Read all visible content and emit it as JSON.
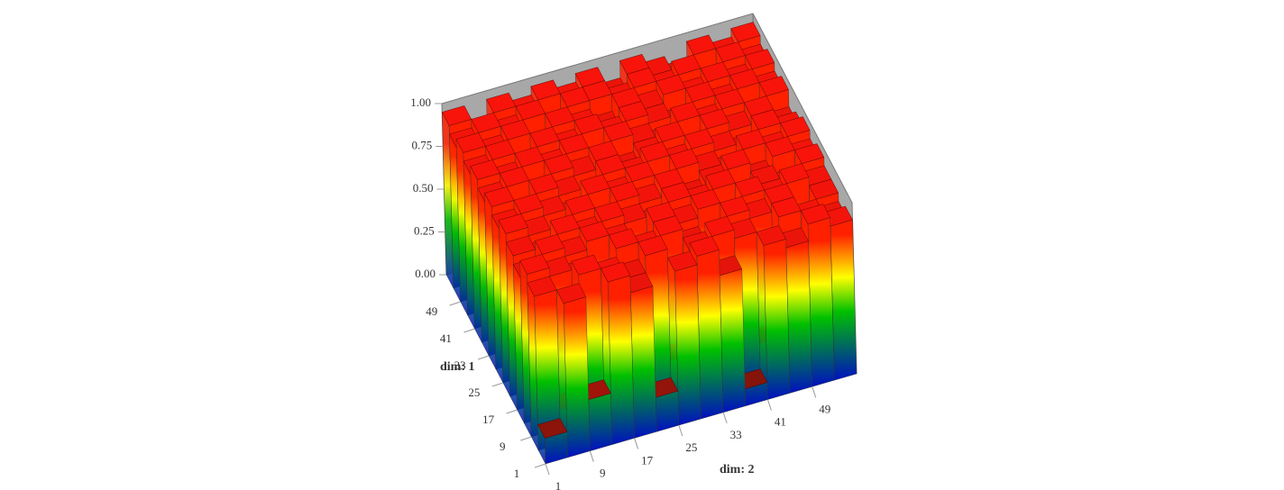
{
  "chart_data": {
    "type": "surface3d",
    "x_label": "dim: 2",
    "y_label": "dim: 1",
    "x": [
      1,
      5,
      9,
      13,
      17,
      21,
      25,
      29,
      33,
      37,
      41,
      45,
      49,
      53
    ],
    "y": [
      1,
      5,
      9,
      13,
      17,
      21,
      25,
      29,
      33,
      37,
      41,
      45,
      49,
      53
    ],
    "xlim": [
      1,
      57
    ],
    "ylim": [
      1,
      57
    ],
    "zlim": [
      0,
      1
    ],
    "xticks": [
      1,
      9,
      17,
      25,
      33,
      41,
      49
    ],
    "yticks": [
      1,
      9,
      17,
      25,
      33,
      41,
      49
    ],
    "zticks": [
      {
        "value": 0,
        "label": "0.00"
      },
      {
        "value": 0.25,
        "label": "0.25"
      },
      {
        "value": 0.5,
        "label": "0.50"
      },
      {
        "value": 0.75,
        "label": "0.75"
      },
      {
        "value": 1,
        "label": "1.00"
      }
    ],
    "colorscale": [
      "#0010c0",
      "#00c000",
      "#ffff00",
      "#ff2000"
    ],
    "wall_color": "#a8a8a8",
    "z": [
      [
        0.15,
        0.9,
        0.3,
        0.95,
        0.85,
        0.2,
        0.9,
        0.95,
        0.8,
        0.1,
        0.9,
        0.85,
        0.95,
        0.9
      ],
      [
        0.9,
        0.2,
        0.95,
        0.9,
        0.85,
        0.95,
        0.3,
        0.9,
        0.95,
        0.9,
        0.25,
        0.95,
        0.9,
        0.85
      ],
      [
        0.95,
        0.9,
        0.85,
        0.4,
        0.95,
        0.9,
        0.95,
        0.85,
        0.2,
        0.95,
        0.9,
        0.95,
        0.3,
        0.9
      ],
      [
        0.85,
        0.95,
        0.9,
        0.95,
        0.9,
        0.35,
        0.95,
        0.9,
        0.95,
        0.85,
        0.95,
        0.9,
        0.95,
        0.9
      ],
      [
        0.9,
        0.85,
        0.95,
        0.9,
        0.95,
        0.9,
        0.85,
        0.95,
        0.9,
        0.95,
        0.45,
        0.9,
        0.85,
        0.95
      ],
      [
        0.95,
        0.9,
        0.3,
        0.95,
        0.85,
        0.95,
        0.9,
        0.95,
        0.85,
        0.9,
        0.95,
        0.85,
        0.95,
        0.9
      ],
      [
        0.9,
        0.95,
        0.9,
        0.85,
        0.95,
        0.9,
        0.95,
        0.4,
        0.95,
        0.9,
        0.85,
        0.95,
        0.9,
        0.95
      ],
      [
        0.95,
        0.85,
        0.95,
        0.9,
        0.5,
        0.95,
        0.9,
        0.95,
        0.9,
        0.95,
        0.9,
        0.85,
        0.95,
        0.9
      ],
      [
        0.9,
        0.95,
        0.85,
        0.95,
        0.9,
        0.95,
        0.85,
        0.9,
        0.95,
        0.45,
        0.95,
        0.9,
        0.95,
        0.85
      ],
      [
        0.95,
        0.9,
        0.95,
        0.9,
        0.95,
        0.85,
        0.95,
        0.9,
        0.85,
        0.95,
        0.9,
        0.95,
        0.85,
        0.95
      ],
      [
        0.9,
        0.95,
        0.85,
        0.95,
        0.9,
        0.95,
        0.9,
        0.95,
        0.9,
        0.85,
        0.95,
        0.9,
        0.95,
        0.9
      ],
      [
        0.95,
        0.9,
        0.95,
        0.85,
        0.95,
        0.9,
        0.85,
        0.95,
        0.9,
        0.95,
        0.9,
        0.95,
        0.9,
        0.95
      ],
      [
        0.9,
        0.95,
        0.9,
        0.95,
        0.85,
        0.95,
        0.95,
        0.9,
        0.95,
        0.9,
        0.95,
        0.85,
        0.95,
        0.9
      ],
      [
        0.95,
        0.85,
        0.95,
        0.9,
        0.95,
        0.9,
        0.95,
        0.85,
        0.95,
        0.9,
        0.85,
        0.95,
        0.9,
        0.95
      ]
    ]
  }
}
